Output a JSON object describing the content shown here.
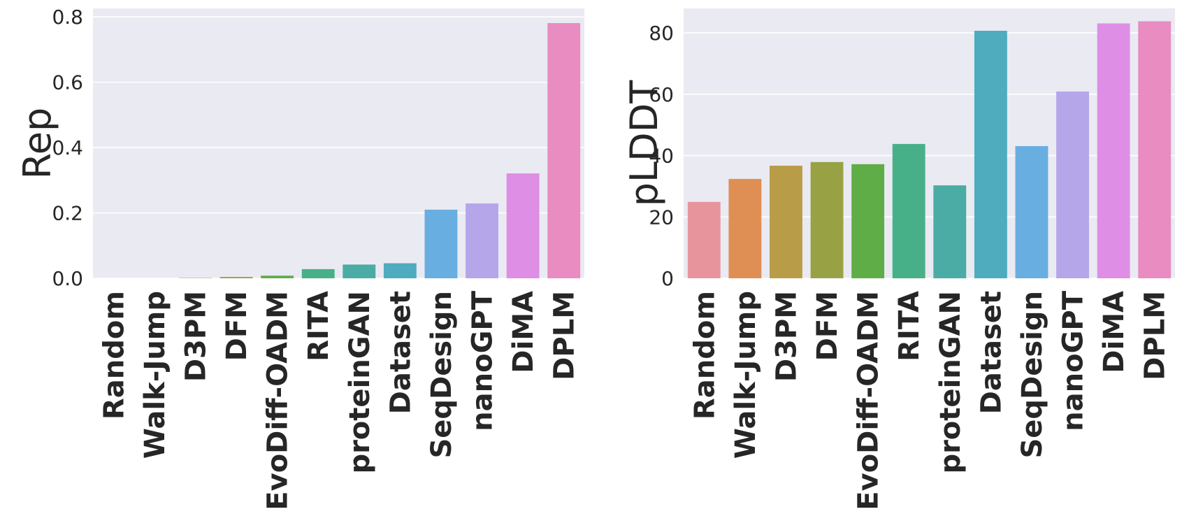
{
  "chart_data": [
    {
      "type": "bar",
      "categories": [
        "Random",
        "Walk-Jump",
        "D3PM",
        "DFM",
        "EvoDiff-OADM",
        "RITA",
        "proteinGAN",
        "Dataset",
        "SeqDesign",
        "nanoGPT",
        "DiMA",
        "DPLM"
      ],
      "values": [
        0.0,
        0.0,
        0.001,
        0.004,
        0.008,
        0.028,
        0.042,
        0.046,
        0.21,
        0.229,
        0.321,
        0.781
      ],
      "colors": [
        "#e8949c",
        "#e08f54",
        "#b89c48",
        "#98a245",
        "#5fad47",
        "#48b088",
        "#4aaca4",
        "#4eacbe",
        "#69aee0",
        "#b5a6ea",
        "#df8ee6",
        "#e88cc2"
      ],
      "xlabel": "",
      "ylabel": "Rep",
      "ylim": [
        0,
        0.826
      ],
      "yticks": [
        "0.0",
        "0.2",
        "0.4",
        "0.6",
        "0.8"
      ],
      "ytick_values": [
        0,
        0.2,
        0.4,
        0.6,
        0.8
      ],
      "grid": true
    },
    {
      "type": "bar",
      "categories": [
        "Random",
        "Walk-Jump",
        "D3PM",
        "DFM",
        "EvoDiff-OADM",
        "RITA",
        "proteinGAN",
        "Dataset",
        "SeqDesign",
        "nanoGPT",
        "DiMA",
        "DPLM"
      ],
      "values": [
        24.9,
        32.4,
        36.7,
        37.9,
        37.2,
        43.8,
        30.3,
        80.7,
        43.1,
        60.9,
        83.1,
        83.8
      ],
      "colors": [
        "#e8949c",
        "#e08f54",
        "#b89c48",
        "#98a245",
        "#5fad47",
        "#48b088",
        "#4aaca4",
        "#4eacbe",
        "#69aee0",
        "#b5a6ea",
        "#df8ee6",
        "#e88cc2"
      ],
      "xlabel": "",
      "ylabel": "pLDDT",
      "ylim": [
        0,
        88
      ],
      "yticks": [
        "0",
        "20",
        "40",
        "60",
        "80"
      ],
      "ytick_values": [
        0,
        20,
        40,
        60,
        80
      ],
      "grid": true
    }
  ]
}
